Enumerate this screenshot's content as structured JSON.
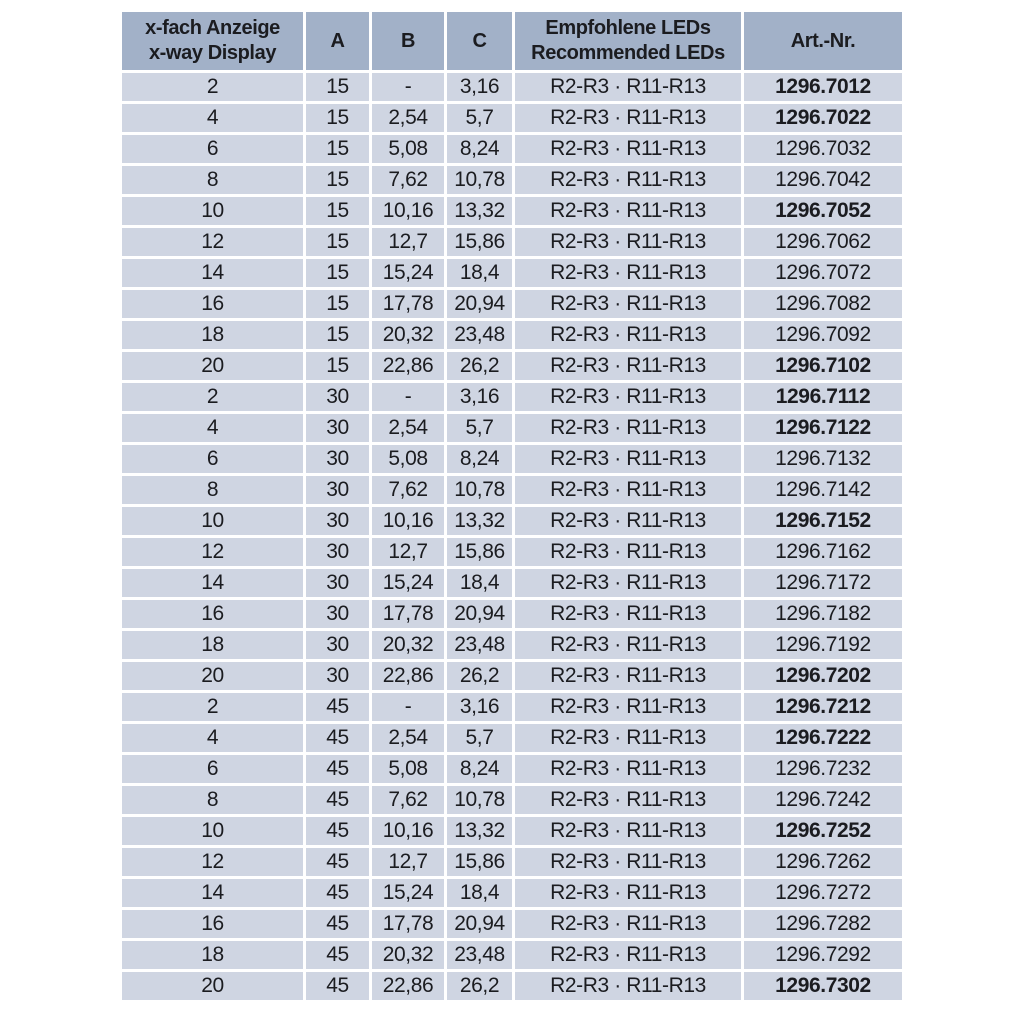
{
  "table": {
    "colors": {
      "header_bg": "#a2b1c8",
      "row_bg": "#cfd5e2",
      "separator": "#ffffff",
      "text": "#1b1c20",
      "page_bg": "#ffffff"
    },
    "columns": [
      {
        "id": "display",
        "label_line1": "x-fach Anzeige",
        "label_line2": "x-way Display"
      },
      {
        "id": "a",
        "label": "A"
      },
      {
        "id": "b",
        "label": "B"
      },
      {
        "id": "c",
        "label": "C"
      },
      {
        "id": "leds",
        "label_line1": "Empfohlene LEDs",
        "label_line2": "Recommended LEDs"
      },
      {
        "id": "art",
        "label": "Art.-Nr."
      }
    ],
    "row_fields": [
      "display",
      "a",
      "b",
      "c",
      "leds",
      "art",
      "art_bold"
    ],
    "rows": [
      [
        "2",
        "15",
        "-",
        "3,16",
        "R2-R3 · R11-R13",
        "1296.7012",
        true
      ],
      [
        "4",
        "15",
        "2,54",
        "5,7",
        "R2-R3 · R11-R13",
        "1296.7022",
        true
      ],
      [
        "6",
        "15",
        "5,08",
        "8,24",
        "R2-R3 · R11-R13",
        "1296.7032",
        false
      ],
      [
        "8",
        "15",
        "7,62",
        "10,78",
        "R2-R3 · R11-R13",
        "1296.7042",
        false
      ],
      [
        "10",
        "15",
        "10,16",
        "13,32",
        "R2-R3 · R11-R13",
        "1296.7052",
        true
      ],
      [
        "12",
        "15",
        "12,7",
        "15,86",
        "R2-R3 · R11-R13",
        "1296.7062",
        false
      ],
      [
        "14",
        "15",
        "15,24",
        "18,4",
        "R2-R3 · R11-R13",
        "1296.7072",
        false
      ],
      [
        "16",
        "15",
        "17,78",
        "20,94",
        "R2-R3 · R11-R13",
        "1296.7082",
        false
      ],
      [
        "18",
        "15",
        "20,32",
        "23,48",
        "R2-R3 · R11-R13",
        "1296.7092",
        false
      ],
      [
        "20",
        "15",
        "22,86",
        "26,2",
        "R2-R3 · R11-R13",
        "1296.7102",
        true
      ],
      [
        "2",
        "30",
        "-",
        "3,16",
        "R2-R3 · R11-R13",
        "1296.7112",
        true
      ],
      [
        "4",
        "30",
        "2,54",
        "5,7",
        "R2-R3 · R11-R13",
        "1296.7122",
        true
      ],
      [
        "6",
        "30",
        "5,08",
        "8,24",
        "R2-R3 · R11-R13",
        "1296.7132",
        false
      ],
      [
        "8",
        "30",
        "7,62",
        "10,78",
        "R2-R3 · R11-R13",
        "1296.7142",
        false
      ],
      [
        "10",
        "30",
        "10,16",
        "13,32",
        "R2-R3 · R11-R13",
        "1296.7152",
        true
      ],
      [
        "12",
        "30",
        "12,7",
        "15,86",
        "R2-R3 · R11-R13",
        "1296.7162",
        false
      ],
      [
        "14",
        "30",
        "15,24",
        "18,4",
        "R2-R3 · R11-R13",
        "1296.7172",
        false
      ],
      [
        "16",
        "30",
        "17,78",
        "20,94",
        "R2-R3 · R11-R13",
        "1296.7182",
        false
      ],
      [
        "18",
        "30",
        "20,32",
        "23,48",
        "R2-R3 · R11-R13",
        "1296.7192",
        false
      ],
      [
        "20",
        "30",
        "22,86",
        "26,2",
        "R2-R3 · R11-R13",
        "1296.7202",
        true
      ],
      [
        "2",
        "45",
        "-",
        "3,16",
        "R2-R3 · R11-R13",
        "1296.7212",
        true
      ],
      [
        "4",
        "45",
        "2,54",
        "5,7",
        "R2-R3 · R11-R13",
        "1296.7222",
        true
      ],
      [
        "6",
        "45",
        "5,08",
        "8,24",
        "R2-R3 · R11-R13",
        "1296.7232",
        false
      ],
      [
        "8",
        "45",
        "7,62",
        "10,78",
        "R2-R3 · R11-R13",
        "1296.7242",
        false
      ],
      [
        "10",
        "45",
        "10,16",
        "13,32",
        "R2-R3 · R11-R13",
        "1296.7252",
        true
      ],
      [
        "12",
        "45",
        "12,7",
        "15,86",
        "R2-R3 · R11-R13",
        "1296.7262",
        false
      ],
      [
        "14",
        "45",
        "15,24",
        "18,4",
        "R2-R3 · R11-R13",
        "1296.7272",
        false
      ],
      [
        "16",
        "45",
        "17,78",
        "20,94",
        "R2-R3 · R11-R13",
        "1296.7282",
        false
      ],
      [
        "18",
        "45",
        "20,32",
        "23,48",
        "R2-R3 · R11-R13",
        "1296.7292",
        false
      ],
      [
        "20",
        "45",
        "22,86",
        "26,2",
        "R2-R3 · R11-R13",
        "1296.7302",
        true
      ]
    ]
  }
}
